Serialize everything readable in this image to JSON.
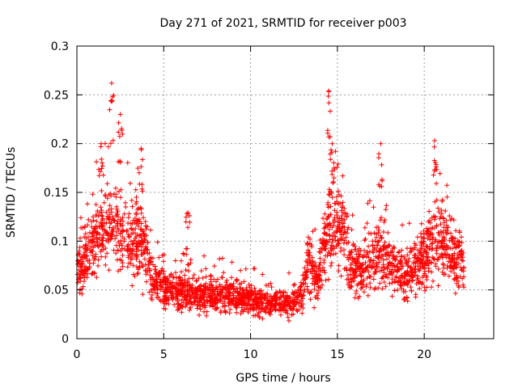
{
  "chart_data": {
    "type": "scatter",
    "title": "Day 271 of 2021, SRMTID for receiver p003",
    "xlabel": "GPS time / hours",
    "ylabel": "SRMTID / TECUs",
    "xlim": [
      0,
      24
    ],
    "ylim": [
      0,
      0.3
    ],
    "xticks": [
      0,
      5,
      10,
      15,
      20
    ],
    "yticks": [
      0,
      0.05,
      0.1,
      0.15,
      0.2,
      0.25,
      0.3
    ],
    "xtick_labels": [
      "0",
      "5",
      "10",
      "15",
      "20"
    ],
    "ytick_labels": [
      "0",
      "0.05",
      "0.1",
      "0.15",
      "0.2",
      "0.25",
      "0.3"
    ],
    "grid": true,
    "marker": "+",
    "color": "#ff0000",
    "series": [
      {
        "name": "SRMTID",
        "x_range": [
          0,
          22.3
        ],
        "profile": [
          [
            0.0,
            0.07
          ],
          [
            0.5,
            0.08
          ],
          [
            1.0,
            0.1
          ],
          [
            1.5,
            0.11
          ],
          [
            2.0,
            0.12
          ],
          [
            2.5,
            0.11
          ],
          [
            3.0,
            0.1
          ],
          [
            3.5,
            0.1
          ],
          [
            4.0,
            0.09
          ],
          [
            4.3,
            0.06
          ],
          [
            5.0,
            0.05
          ],
          [
            6.0,
            0.048
          ],
          [
            7.0,
            0.045
          ],
          [
            8.0,
            0.045
          ],
          [
            9.0,
            0.042
          ],
          [
            10.0,
            0.04
          ],
          [
            11.0,
            0.038
          ],
          [
            12.0,
            0.035
          ],
          [
            13.0,
            0.045
          ],
          [
            13.4,
            0.085
          ],
          [
            13.8,
            0.055
          ],
          [
            14.3,
            0.1
          ],
          [
            14.8,
            0.12
          ],
          [
            15.3,
            0.11
          ],
          [
            15.8,
            0.075
          ],
          [
            16.5,
            0.07
          ],
          [
            17.0,
            0.08
          ],
          [
            17.5,
            0.09
          ],
          [
            18.0,
            0.075
          ],
          [
            19.0,
            0.065
          ],
          [
            20.0,
            0.08
          ],
          [
            20.5,
            0.1
          ],
          [
            21.0,
            0.1
          ],
          [
            21.5,
            0.09
          ],
          [
            22.3,
            0.075
          ]
        ],
        "peaks": [
          {
            "x": 2.0,
            "y": 0.262
          },
          {
            "x": 1.4,
            "y": 0.2
          },
          {
            "x": 2.5,
            "y": 0.23
          },
          {
            "x": 3.7,
            "y": 0.195
          },
          {
            "x": 14.5,
            "y": 0.254
          },
          {
            "x": 14.7,
            "y": 0.2
          },
          {
            "x": 17.5,
            "y": 0.2
          },
          {
            "x": 20.6,
            "y": 0.203
          },
          {
            "x": 6.4,
            "y": 0.129
          }
        ]
      }
    ]
  }
}
